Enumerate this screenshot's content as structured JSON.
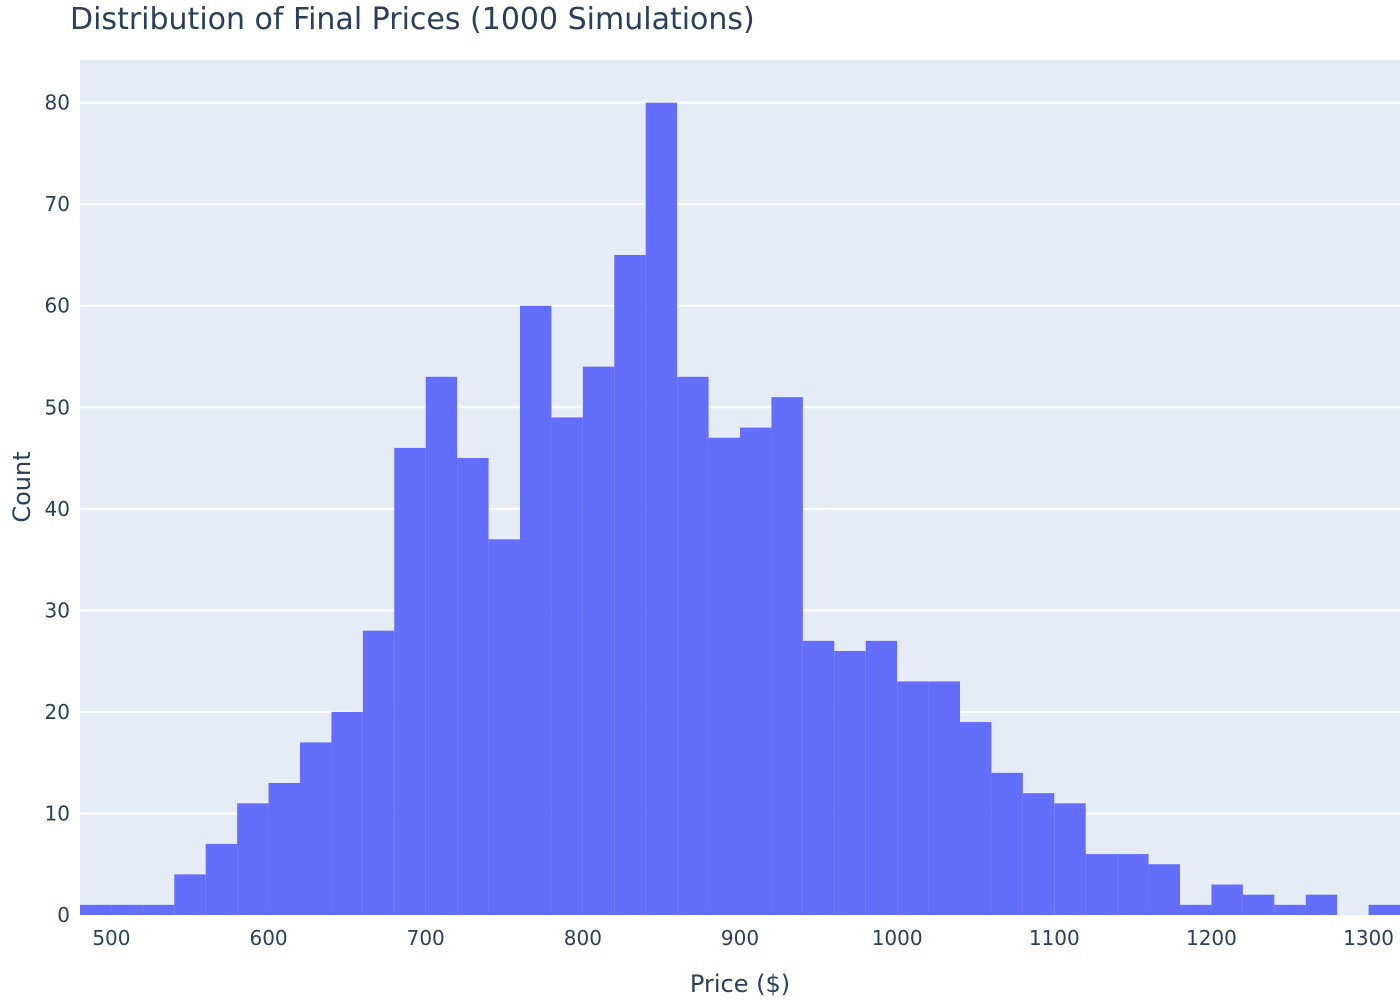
{
  "chart_data": {
    "type": "bar",
    "title": "Distribution of Final Prices (1000 Simulations)",
    "xlabel": "Price ($)",
    "ylabel": "Count",
    "xlim": [
      480,
      1320
    ],
    "ylim": [
      0,
      84.2
    ],
    "bin_size": 20,
    "bin_starts": [
      480,
      500,
      520,
      540,
      560,
      580,
      600,
      620,
      640,
      660,
      680,
      700,
      720,
      740,
      760,
      780,
      800,
      820,
      840,
      860,
      880,
      900,
      920,
      940,
      960,
      980,
      1000,
      1020,
      1040,
      1060,
      1080,
      1100,
      1120,
      1140,
      1160,
      1180,
      1200,
      1220,
      1240,
      1260,
      1280,
      1300
    ],
    "values": [
      1,
      1,
      1,
      4,
      7,
      11,
      13,
      17,
      20,
      28,
      46,
      53,
      45,
      37,
      60,
      49,
      54,
      65,
      80,
      53,
      47,
      48,
      51,
      27,
      26,
      27,
      23,
      23,
      19,
      14,
      12,
      11,
      6,
      6,
      5,
      1,
      3,
      2,
      1,
      2,
      0,
      1
    ],
    "x_ticks": [
      "500",
      "600",
      "700",
      "800",
      "900",
      "1000",
      "1100",
      "1200",
      "1300"
    ],
    "x_tick_values": [
      500,
      600,
      700,
      800,
      900,
      1000,
      1100,
      1200,
      1300
    ],
    "y_ticks": [
      "0",
      "10",
      "20",
      "30",
      "40",
      "50",
      "60",
      "70",
      "80"
    ],
    "y_tick_values": [
      0,
      10,
      20,
      30,
      40,
      50,
      60,
      70,
      80
    ],
    "grid": true,
    "colors": {
      "bar": "#636efa",
      "plot_bg": "#e5ecf6",
      "grid": "#ffffff",
      "text": "#2a3f5f"
    }
  }
}
